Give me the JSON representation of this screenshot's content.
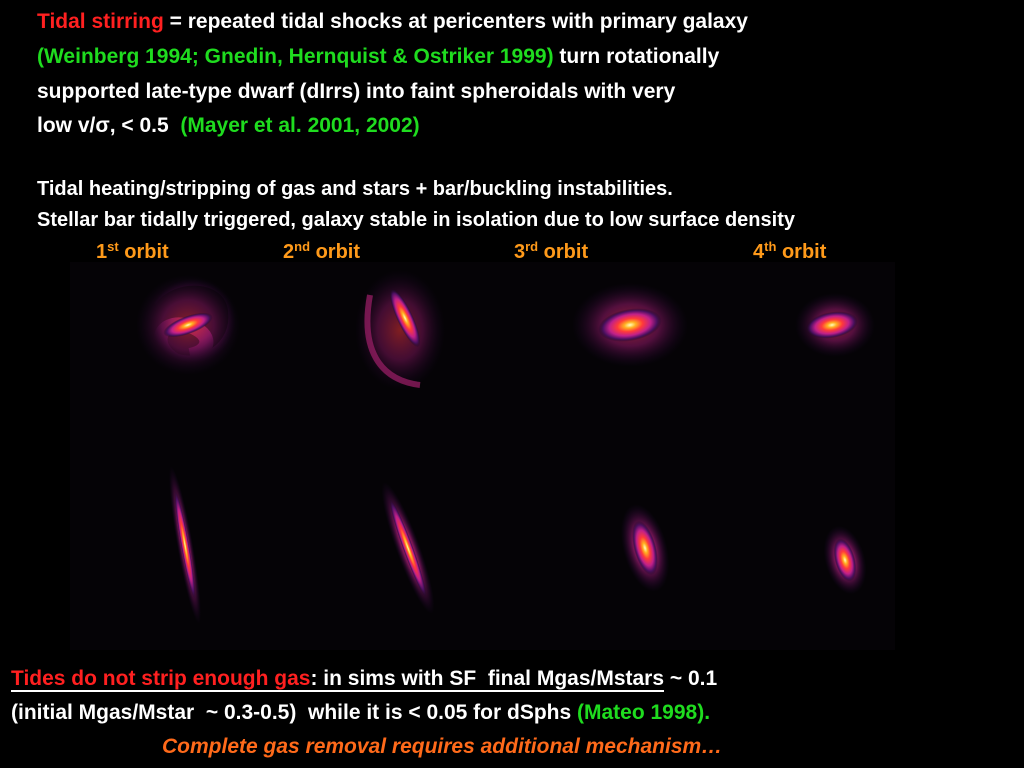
{
  "intro": {
    "line1": {
      "highlight": "Tidal stirring",
      "text": " = repeated tidal shocks at pericenters with primary galaxy"
    },
    "line2": {
      "citation": "(Weinberg 1994; Gnedin, Hernquist & Ostriker 1999)",
      "text": " turn rotationally"
    },
    "line3": "supported late-type dwarf (dIrrs) into faint spheroidals with very",
    "line4": {
      "text": "low v/σ, < 0.5",
      "citation": "(Mayer et al. 2001, 2002)"
    }
  },
  "notes": [
    "Tidal heating/stripping of gas and stars + bar/buckling instabilities.",
    "Stellar bar tidally triggered, galaxy stable in isolation due to low surface density"
  ],
  "orbits": [
    {
      "number": "1",
      "suffix": "st",
      "word": " orbit"
    },
    {
      "number": "2",
      "suffix": "nd",
      "word": " orbit"
    },
    {
      "number": "3",
      "suffix": "rd",
      "word": " orbit"
    },
    {
      "number": "4",
      "suffix": "th",
      "word": " orbit"
    }
  ],
  "conclusion": {
    "line1": {
      "highlight": "Tides do not strip enough gas",
      "text": ": in sims with SF  final Mgas/Mstars",
      "tail": " ~ 0.1"
    },
    "line2": {
      "text": "(initial Mgas/Mstar  ~ 0.3-0.5)  while it is < 0.05 for dSphs ",
      "citation": "(Mateo 1998)."
    },
    "line3": "Complete gas removal requires additional mechanism…"
  }
}
